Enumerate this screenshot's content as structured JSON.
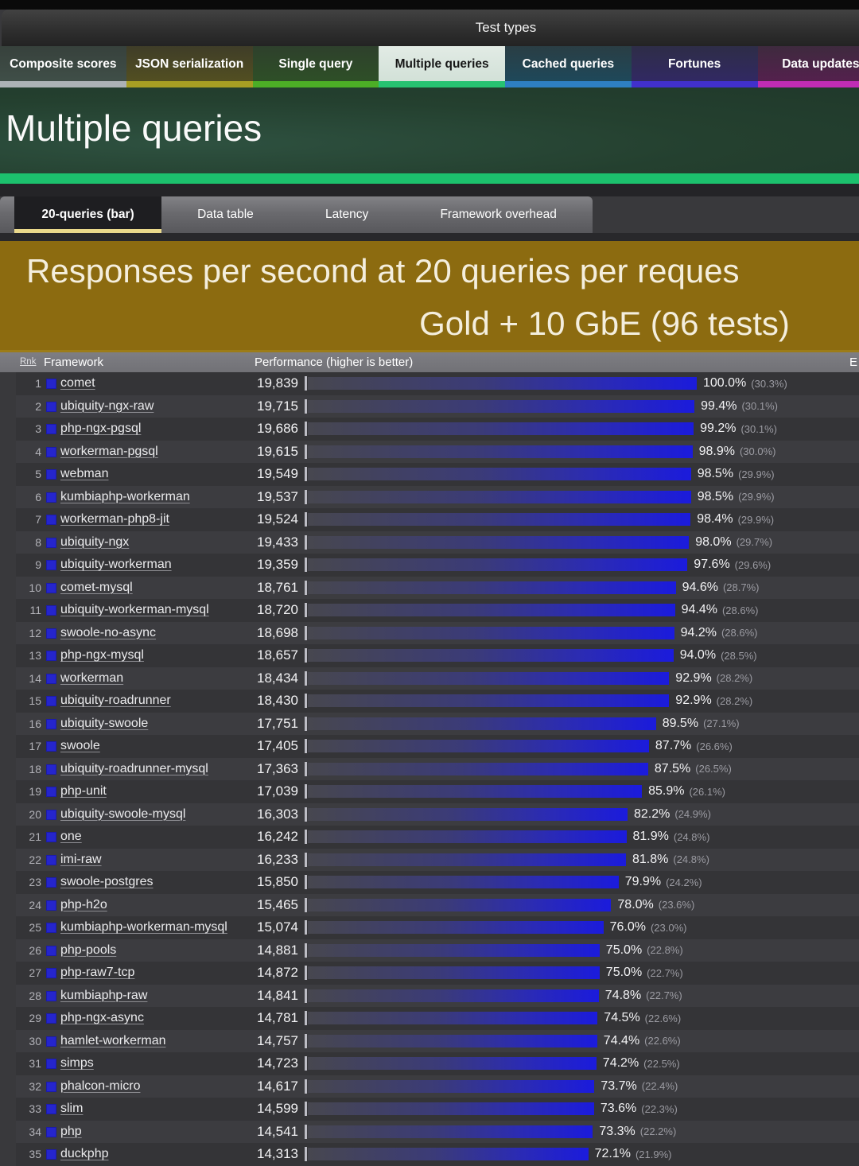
{
  "nav": {
    "title": "Test types"
  },
  "test_type_tabs": [
    {
      "label": "Composite scores",
      "selected": false,
      "underline": "#acb2b6",
      "bg_top": "#37413c",
      "bg_bottom": "#41514a"
    },
    {
      "label": "JSON serialization",
      "selected": false,
      "underline": "#a79e23",
      "bg_top": "#3f3d28",
      "bg_bottom": "#565220"
    },
    {
      "label": "Single query",
      "selected": false,
      "underline": "#4cae26",
      "bg_top": "#2e402c",
      "bg_bottom": "#2e5226"
    },
    {
      "label": "Multiple queries",
      "selected": true,
      "underline": "#27c271",
      "bg_top": "#e2ebe5",
      "bg_bottom": "#cfdfd5"
    },
    {
      "label": "Cached queries",
      "selected": false,
      "underline": "#2e7fc2",
      "bg_top": "#2a3e44",
      "bg_bottom": "#1c4a5e"
    },
    {
      "label": "Fortunes",
      "selected": false,
      "underline": "#4130cc",
      "bg_top": "#2e2d47",
      "bg_bottom": "#322868"
    },
    {
      "label": "Data updates",
      "selected": false,
      "underline": "#c02cb4",
      "bg_top": "#3e2a3e",
      "bg_bottom": "#581f50"
    }
  ],
  "page_header": {
    "title": "Multiple queries",
    "stripe_color": "#1cc06d"
  },
  "view_tabs": {
    "active": "20-queries (bar)",
    "active_underline": "#ead98c",
    "others": [
      "Data table",
      "Latency",
      "Framework overhead"
    ]
  },
  "banner": {
    "line1": "Responses per second at 20 queries per reques",
    "line2": "Gold + 10 GbE (96 tests)",
    "bg": "#8c6b10",
    "text_color": "#f4eedd"
  },
  "table": {
    "headers": {
      "rank": "Rnk",
      "framework": "Framework",
      "performance": "Performance (higher is better)",
      "errors": "E"
    },
    "legend_square_color": "#2525cd",
    "bar_gradient_end": "#1b1bdc"
  },
  "chart_data": {
    "type": "bar",
    "title": "Responses per second at 20 queries per reques",
    "subtitle": "Gold + 10 GbE (96 tests)",
    "xlabel": "Performance (higher is better)",
    "rows": [
      {
        "rank": 1,
        "framework": "comet",
        "value": "19,839",
        "pct": 100.0,
        "pct_label": "100.0%",
        "share": "(30.3%)"
      },
      {
        "rank": 2,
        "framework": "ubiquity-ngx-raw",
        "value": "19,715",
        "pct": 99.4,
        "pct_label": "99.4%",
        "share": "(30.1%)"
      },
      {
        "rank": 3,
        "framework": "php-ngx-pgsql",
        "value": "19,686",
        "pct": 99.2,
        "pct_label": "99.2%",
        "share": "(30.1%)"
      },
      {
        "rank": 4,
        "framework": "workerman-pgsql",
        "value": "19,615",
        "pct": 98.9,
        "pct_label": "98.9%",
        "share": "(30.0%)"
      },
      {
        "rank": 5,
        "framework": "webman",
        "value": "19,549",
        "pct": 98.5,
        "pct_label": "98.5%",
        "share": "(29.9%)"
      },
      {
        "rank": 6,
        "framework": "kumbiaphp-workerman",
        "value": "19,537",
        "pct": 98.5,
        "pct_label": "98.5%",
        "share": "(29.9%)"
      },
      {
        "rank": 7,
        "framework": "workerman-php8-jit",
        "value": "19,524",
        "pct": 98.4,
        "pct_label": "98.4%",
        "share": "(29.9%)"
      },
      {
        "rank": 8,
        "framework": "ubiquity-ngx",
        "value": "19,433",
        "pct": 98.0,
        "pct_label": "98.0%",
        "share": "(29.7%)"
      },
      {
        "rank": 9,
        "framework": "ubiquity-workerman",
        "value": "19,359",
        "pct": 97.6,
        "pct_label": "97.6%",
        "share": "(29.6%)"
      },
      {
        "rank": 10,
        "framework": "comet-mysql",
        "value": "18,761",
        "pct": 94.6,
        "pct_label": "94.6%",
        "share": "(28.7%)"
      },
      {
        "rank": 11,
        "framework": "ubiquity-workerman-mysql",
        "value": "18,720",
        "pct": 94.4,
        "pct_label": "94.4%",
        "share": "(28.6%)"
      },
      {
        "rank": 12,
        "framework": "swoole-no-async",
        "value": "18,698",
        "pct": 94.2,
        "pct_label": "94.2%",
        "share": "(28.6%)"
      },
      {
        "rank": 13,
        "framework": "php-ngx-mysql",
        "value": "18,657",
        "pct": 94.0,
        "pct_label": "94.0%",
        "share": "(28.5%)"
      },
      {
        "rank": 14,
        "framework": "workerman",
        "value": "18,434",
        "pct": 92.9,
        "pct_label": "92.9%",
        "share": "(28.2%)"
      },
      {
        "rank": 15,
        "framework": "ubiquity-roadrunner",
        "value": "18,430",
        "pct": 92.9,
        "pct_label": "92.9%",
        "share": "(28.2%)"
      },
      {
        "rank": 16,
        "framework": "ubiquity-swoole",
        "value": "17,751",
        "pct": 89.5,
        "pct_label": "89.5%",
        "share": "(27.1%)"
      },
      {
        "rank": 17,
        "framework": "swoole",
        "value": "17,405",
        "pct": 87.7,
        "pct_label": "87.7%",
        "share": "(26.6%)"
      },
      {
        "rank": 18,
        "framework": "ubiquity-roadrunner-mysql",
        "value": "17,363",
        "pct": 87.5,
        "pct_label": "87.5%",
        "share": "(26.5%)"
      },
      {
        "rank": 19,
        "framework": "php-unit",
        "value": "17,039",
        "pct": 85.9,
        "pct_label": "85.9%",
        "share": "(26.1%)"
      },
      {
        "rank": 20,
        "framework": "ubiquity-swoole-mysql",
        "value": "16,303",
        "pct": 82.2,
        "pct_label": "82.2%",
        "share": "(24.9%)"
      },
      {
        "rank": 21,
        "framework": "one",
        "value": "16,242",
        "pct": 81.9,
        "pct_label": "81.9%",
        "share": "(24.8%)"
      },
      {
        "rank": 22,
        "framework": "imi-raw",
        "value": "16,233",
        "pct": 81.8,
        "pct_label": "81.8%",
        "share": "(24.8%)"
      },
      {
        "rank": 23,
        "framework": "swoole-postgres",
        "value": "15,850",
        "pct": 79.9,
        "pct_label": "79.9%",
        "share": "(24.2%)"
      },
      {
        "rank": 24,
        "framework": "php-h2o",
        "value": "15,465",
        "pct": 78.0,
        "pct_label": "78.0%",
        "share": "(23.6%)"
      },
      {
        "rank": 25,
        "framework": "kumbiaphp-workerman-mysql",
        "value": "15,074",
        "pct": 76.0,
        "pct_label": "76.0%",
        "share": "(23.0%)"
      },
      {
        "rank": 26,
        "framework": "php-pools",
        "value": "14,881",
        "pct": 75.0,
        "pct_label": "75.0%",
        "share": "(22.8%)"
      },
      {
        "rank": 27,
        "framework": "php-raw7-tcp",
        "value": "14,872",
        "pct": 75.0,
        "pct_label": "75.0%",
        "share": "(22.7%)"
      },
      {
        "rank": 28,
        "framework": "kumbiaphp-raw",
        "value": "14,841",
        "pct": 74.8,
        "pct_label": "74.8%",
        "share": "(22.7%)"
      },
      {
        "rank": 29,
        "framework": "php-ngx-async",
        "value": "14,781",
        "pct": 74.5,
        "pct_label": "74.5%",
        "share": "(22.6%)"
      },
      {
        "rank": 30,
        "framework": "hamlet-workerman",
        "value": "14,757",
        "pct": 74.4,
        "pct_label": "74.4%",
        "share": "(22.6%)"
      },
      {
        "rank": 31,
        "framework": "simps",
        "value": "14,723",
        "pct": 74.2,
        "pct_label": "74.2%",
        "share": "(22.5%)"
      },
      {
        "rank": 32,
        "framework": "phalcon-micro",
        "value": "14,617",
        "pct": 73.7,
        "pct_label": "73.7%",
        "share": "(22.4%)"
      },
      {
        "rank": 33,
        "framework": "slim",
        "value": "14,599",
        "pct": 73.6,
        "pct_label": "73.6%",
        "share": "(22.3%)"
      },
      {
        "rank": 34,
        "framework": "php",
        "value": "14,541",
        "pct": 73.3,
        "pct_label": "73.3%",
        "share": "(22.2%)"
      },
      {
        "rank": 35,
        "framework": "duckphp",
        "value": "14,313",
        "pct": 72.1,
        "pct_label": "72.1%",
        "share": "(21.9%)"
      }
    ]
  }
}
